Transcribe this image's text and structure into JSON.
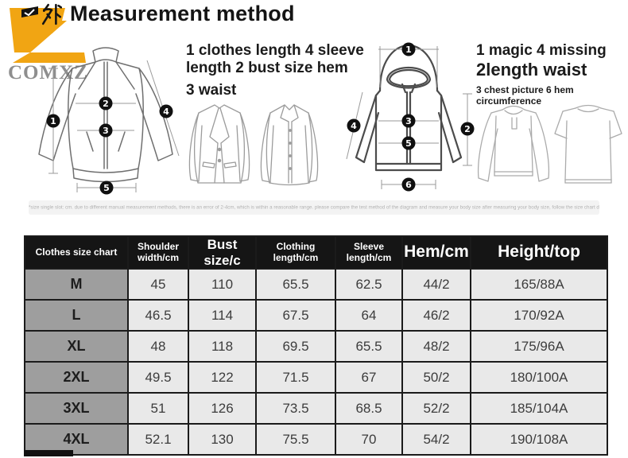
{
  "logo": {
    "brand": "COMXZ",
    "z_color": "#F1A513",
    "text_color": "#8e8e8e"
  },
  "header": {
    "cn_char": "外",
    "title": "Measurement method"
  },
  "notes": {
    "left_line1": "1 clothes length 4 sleeve",
    "left_line2": "length 2 bust size hem",
    "left_line3": "3 waist",
    "right_line1": "1 magic 4 missing",
    "right_line2": "2length waist",
    "right_line3": "3 chest picture 6 hem circumference"
  },
  "icons": {
    "flag_icon": "black flag banner with white check",
    "jacket_diagram": "zip jacket line drawing with measurement markers",
    "blazer_diagram": "blazer line drawing",
    "shirt_diagram": "button shirt line drawing",
    "hoodie_diagram": "hooded jacket line drawing with measurement markers",
    "henley_diagram": "long sleeve henley line drawing",
    "tshirt_diagram": "short sleeve t-shirt line drawing"
  },
  "diagrams": {
    "jacket_markers": [
      "1",
      "2",
      "3",
      "4",
      "5"
    ],
    "hoodie_markers": [
      "1",
      "2",
      "3",
      "4",
      "5",
      "6"
    ]
  },
  "disclaimer": "*size single slot: cm. due to different manual measurement methods, there is an error of 2-4cm, which is within a reasonable range. please compare the test method of the diagram and measure your body size after measuring your body size, follow the size chart data to select the size.",
  "table": {
    "headers": [
      {
        "label": "Clothes size chart",
        "style": "small"
      },
      {
        "label": "Shoulder\nwidth/cm",
        "style": "small"
      },
      {
        "label": "Bust size/c",
        "style": "large"
      },
      {
        "label": "Clothing\nlength/cm",
        "style": "small"
      },
      {
        "label": "Sleeve\nlength/cm",
        "style": "small"
      },
      {
        "label": "Hem/cm",
        "style": "xl"
      },
      {
        "label": "Height/top",
        "style": "xl"
      }
    ],
    "rows": [
      {
        "size": "M",
        "values": [
          "45",
          "110",
          "65.5",
          "62.5",
          "44/2",
          "165/88A"
        ]
      },
      {
        "size": "L",
        "values": [
          "46.5",
          "114",
          "67.5",
          "64",
          "46/2",
          "170/92A"
        ]
      },
      {
        "size": "XL",
        "values": [
          "48",
          "118",
          "69.5",
          "65.5",
          "48/2",
          "175/96A"
        ]
      },
      {
        "size": "2XL",
        "values": [
          "49.5",
          "122",
          "71.5",
          "67",
          "50/2",
          "180/100A"
        ]
      },
      {
        "size": "3XL",
        "values": [
          "51",
          "126",
          "73.5",
          "68.5",
          "52/2",
          "185/104A"
        ]
      },
      {
        "size": "4XL",
        "values": [
          "52.1",
          "130",
          "75.5",
          "70",
          "54/2",
          "190/108A"
        ]
      }
    ]
  },
  "colors": {
    "table_header_bg": "#151515",
    "size_column_bg": "#9e9e9e",
    "value_cell_bg": "#e9e9e9",
    "disclaimer_bg": "#f3f3f3"
  }
}
